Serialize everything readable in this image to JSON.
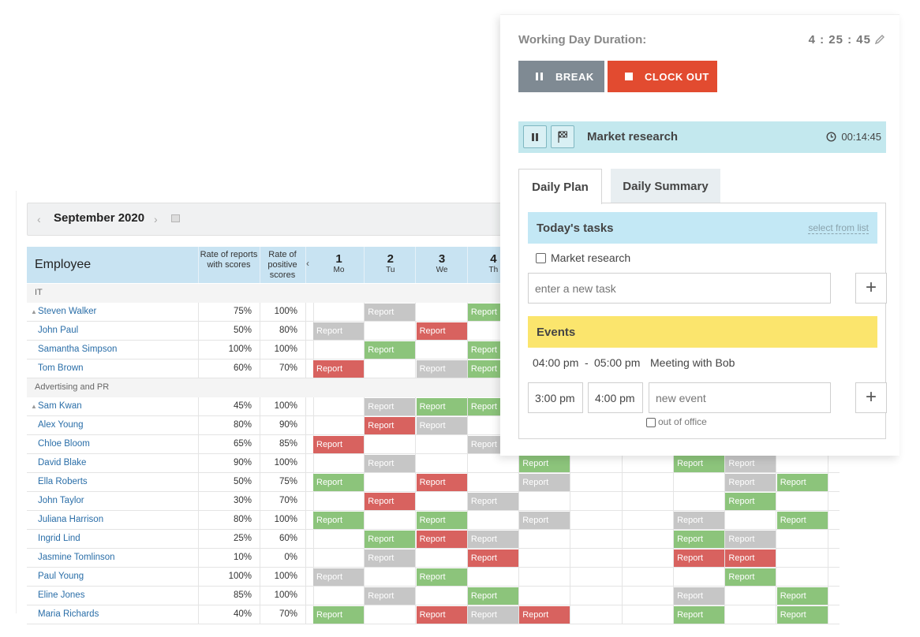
{
  "report": {
    "month": "September 2020",
    "headers": {
      "employee": "Employee",
      "rate_scores": "Rate of reports with scores",
      "rate_positive": "Rate of positive scores",
      "collapse": "‹"
    },
    "days": [
      {
        "num": "1",
        "name": "Mo"
      },
      {
        "num": "2",
        "name": "Tu"
      },
      {
        "num": "3",
        "name": "We"
      },
      {
        "num": "4",
        "name": "Th"
      }
    ],
    "cell_label": "Report",
    "groups": [
      {
        "name": "IT",
        "rows": [
          {
            "name": "Steven Walker",
            "lead": true,
            "r1": "75%",
            "r2": "100%",
            "cells": [
              "",
              "gray",
              "",
              "green",
              "",
              "",
              "",
              "",
              "",
              ""
            ]
          },
          {
            "name": "John Paul",
            "lead": false,
            "r1": "50%",
            "r2": "80%",
            "cells": [
              "gray",
              "",
              "red",
              "",
              "",
              "",
              "",
              "",
              "",
              ""
            ]
          },
          {
            "name": "Samantha Simpson",
            "lead": false,
            "r1": "100%",
            "r2": "100%",
            "cells": [
              "",
              "green",
              "",
              "green",
              "",
              "",
              "",
              "",
              "",
              ""
            ]
          },
          {
            "name": "Tom Brown",
            "lead": false,
            "r1": "60%",
            "r2": "70%",
            "cells": [
              "red",
              "",
              "gray",
              "green",
              "",
              "",
              "",
              "",
              "",
              ""
            ]
          }
        ]
      },
      {
        "name": "Advertising and PR",
        "rows": [
          {
            "name": "Sam Kwan",
            "lead": true,
            "r1": "45%",
            "r2": "100%",
            "cells": [
              "",
              "gray",
              "green",
              "green",
              "",
              "",
              "",
              "",
              "",
              ""
            ]
          },
          {
            "name": "Alex Young",
            "lead": false,
            "r1": "80%",
            "r2": "90%",
            "cells": [
              "",
              "red",
              "gray",
              "",
              "",
              "",
              "",
              "",
              "",
              ""
            ]
          },
          {
            "name": "Chloe Bloom",
            "lead": false,
            "r1": "65%",
            "r2": "85%",
            "cells": [
              "red",
              "",
              "",
              "gray",
              "",
              "",
              "",
              "",
              "",
              ""
            ]
          },
          {
            "name": "David Blake",
            "lead": false,
            "r1": "90%",
            "r2": "100%",
            "cells": [
              "",
              "gray",
              "",
              "",
              "green",
              "",
              "",
              "green",
              "gray",
              ""
            ]
          },
          {
            "name": "Ella Roberts",
            "lead": false,
            "r1": "50%",
            "r2": "75%",
            "cells": [
              "green",
              "",
              "red",
              "",
              "gray",
              "",
              "",
              "",
              "gray",
              "green"
            ]
          },
          {
            "name": "John Taylor",
            "lead": false,
            "r1": "30%",
            "r2": "70%",
            "cells": [
              "",
              "red",
              "",
              "gray",
              "",
              "",
              "",
              "",
              "green",
              ""
            ]
          },
          {
            "name": "Juliana Harrison",
            "lead": false,
            "r1": "80%",
            "r2": "100%",
            "cells": [
              "green",
              "",
              "green",
              "",
              "gray",
              "",
              "",
              "gray",
              "",
              "green"
            ]
          },
          {
            "name": "Ingrid Lind",
            "lead": false,
            "r1": "25%",
            "r2": "60%",
            "cells": [
              "",
              "green",
              "red",
              "gray",
              "",
              "",
              "",
              "green",
              "gray",
              ""
            ]
          },
          {
            "name": "Jasmine Tomlinson",
            "lead": false,
            "r1": "10%",
            "r2": "0%",
            "cells": [
              "",
              "gray",
              "",
              "red",
              "",
              "",
              "",
              "red",
              "red",
              ""
            ]
          },
          {
            "name": "Paul Young",
            "lead": false,
            "r1": "100%",
            "r2": "100%",
            "cells": [
              "gray",
              "",
              "green",
              "",
              "",
              "",
              "",
              "",
              "green",
              ""
            ]
          },
          {
            "name": "Eline Jones",
            "lead": false,
            "r1": "85%",
            "r2": "100%",
            "cells": [
              "",
              "gray",
              "",
              "green",
              "",
              "",
              "",
              "gray",
              "",
              "green"
            ]
          },
          {
            "name": "Maria Richards",
            "lead": false,
            "r1": "40%",
            "r2": "70%",
            "cells": [
              "green",
              "",
              "red",
              "gray",
              "red",
              "",
              "",
              "green",
              "",
              "green"
            ]
          }
        ]
      }
    ]
  },
  "tracker": {
    "working_day_label": "Working Day Duration:",
    "working_day_time": "4 : 25 : 45",
    "break_label": "BREAK",
    "clockout_label": "CLOCK OUT",
    "current_task": "Market research",
    "current_task_time": "00:14:45",
    "tabs": {
      "plan": "Daily Plan",
      "summary": "Daily Summary"
    },
    "tasks_title": "Today's tasks",
    "select_from_list": "select from list",
    "task_item": "Market research",
    "task_placeholder": "enter a new task",
    "events_title": "Events",
    "event": {
      "from": "04:00 pm",
      "dash": "-",
      "to": "05:00 pm",
      "title": "Meeting with Bob"
    },
    "new_event_start": "3:00 pm",
    "new_event_end": "4:00 pm",
    "new_event_placeholder": "new event",
    "out_of_office": "out of office",
    "plus": "+"
  },
  "colors": {
    "green": "#8cc47b",
    "red": "#d8625f",
    "gray": "#c6c6c6",
    "clockout": "#e24b30",
    "break": "#7f8a93",
    "task_bar": "#c3e8ee",
    "events": "#fbe56d"
  }
}
